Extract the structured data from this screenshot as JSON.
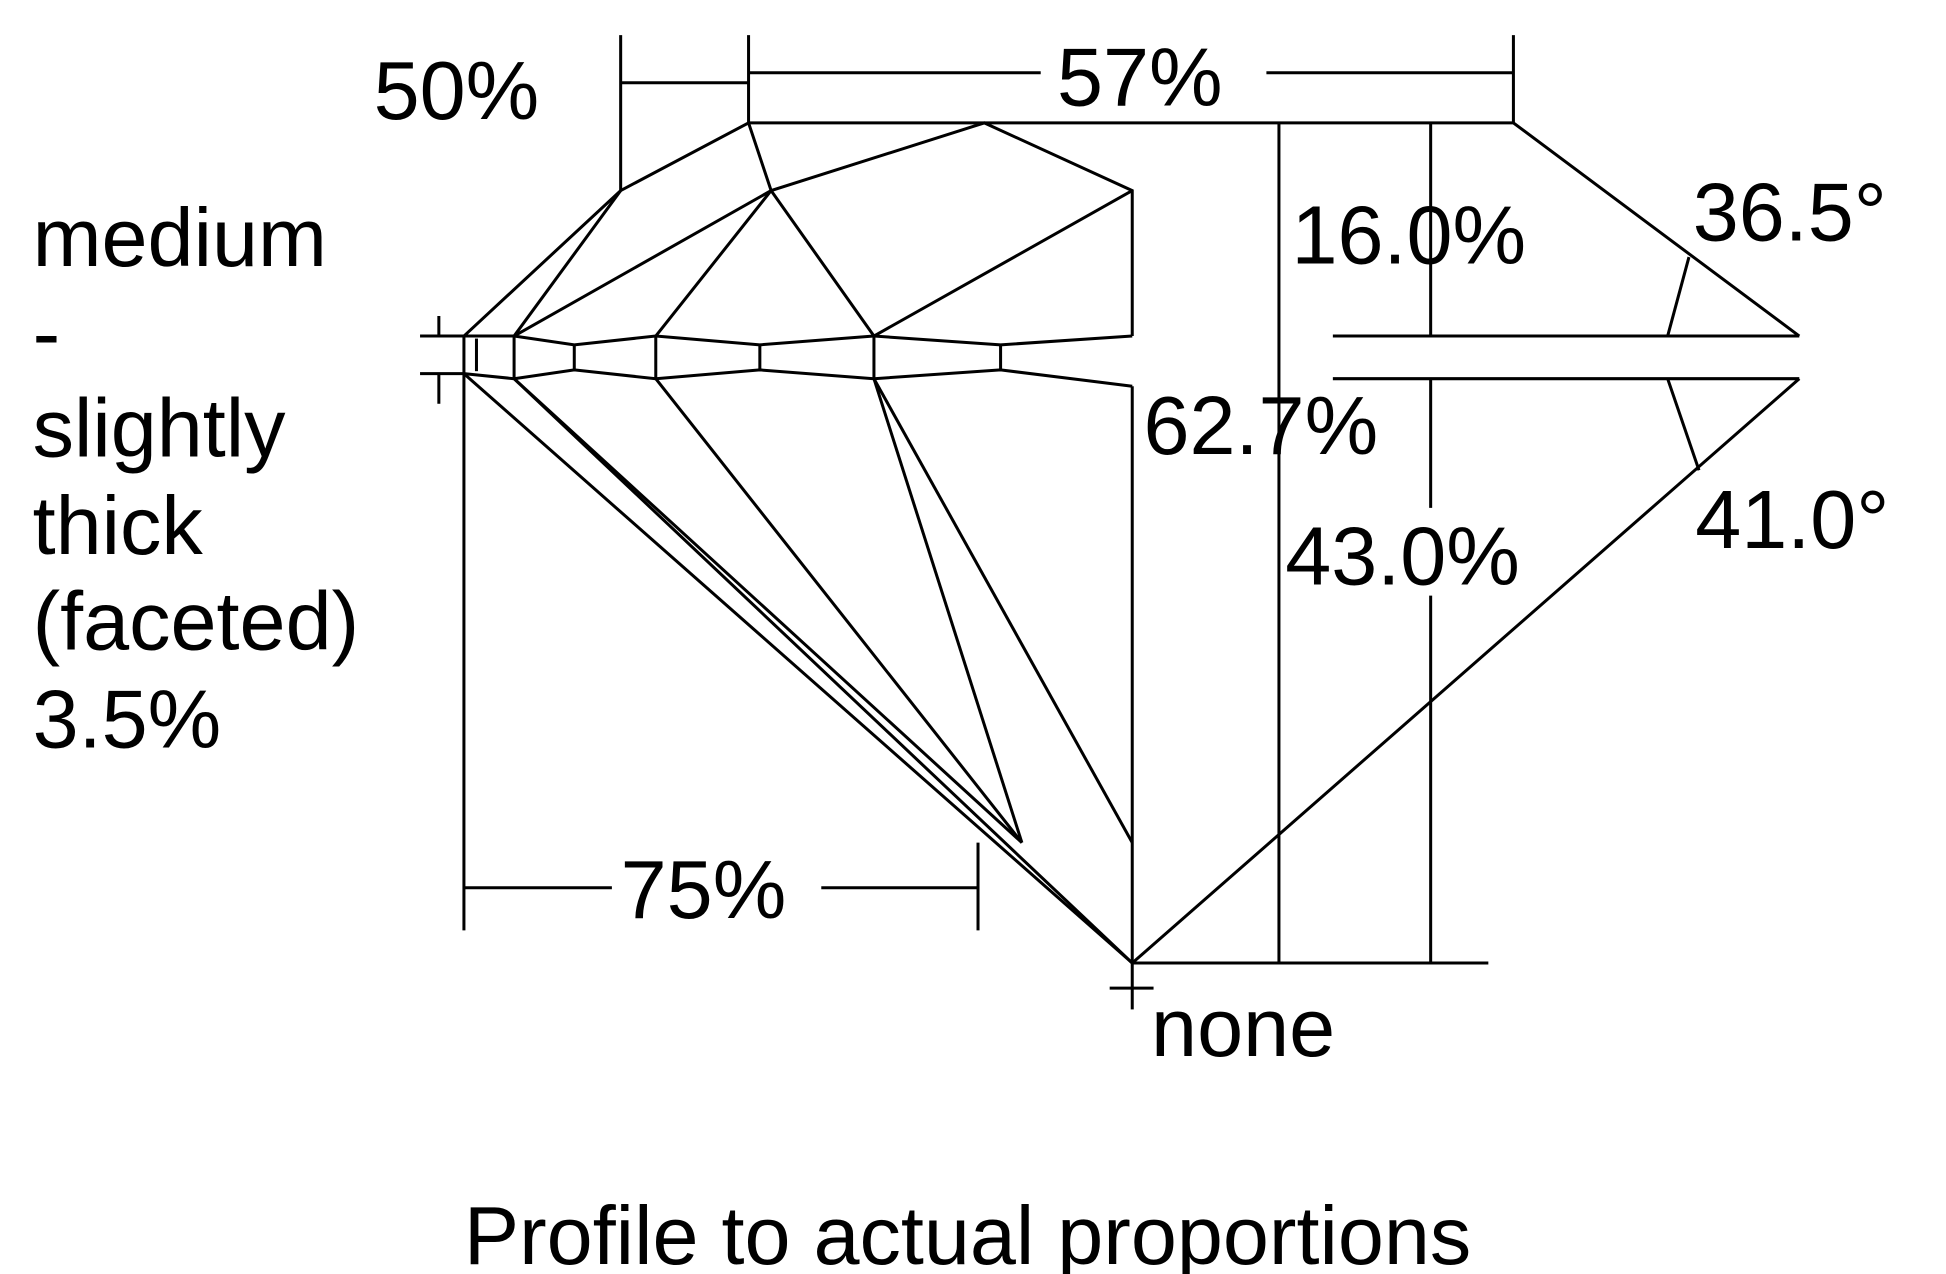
{
  "labels": {
    "table_width": "57%",
    "star_length": "50%",
    "crown_height": "16.0%",
    "crown_angle": "36.5°",
    "total_depth": "62.7%",
    "pavilion_depth": "43.0%",
    "pavilion_angle": "41.0°",
    "lower_half_length": "75%",
    "girdle": [
      "medium",
      "-",
      "slightly",
      "thick",
      "(faceted)",
      "3.5%"
    ],
    "culet": "none",
    "caption": "Profile to actual proportions"
  },
  "colors": {
    "line": "#000000",
    "background": "#ffffff"
  }
}
